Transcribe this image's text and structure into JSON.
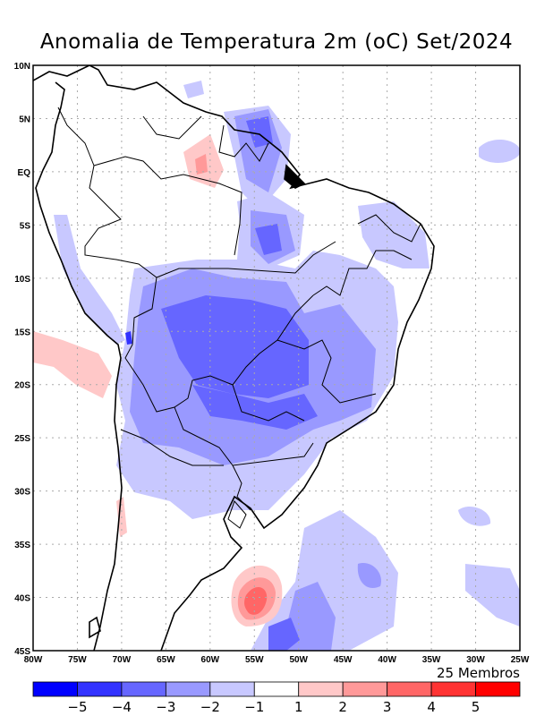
{
  "title": "Anomalia de Temperatura 2m (oC) Set/2024",
  "members_label": "25 Membros",
  "lat_labels": [
    "10N",
    "5N",
    "EQ",
    "5S",
    "10S",
    "15S",
    "20S",
    "25S",
    "30S",
    "35S",
    "40S",
    "45S"
  ],
  "lon_labels": [
    "80W",
    "75W",
    "70W",
    "65W",
    "60W",
    "55W",
    "50W",
    "45W",
    "40W",
    "35W",
    "30W",
    "25W"
  ],
  "colorbar": {
    "colors": [
      "#0000ff",
      "#3333ff",
      "#6666ff",
      "#9999ff",
      "#c8c8ff",
      "#ffffff",
      "#ffc8c8",
      "#ff9999",
      "#ff6666",
      "#ff3333",
      "#ff0000"
    ],
    "labels": [
      "−5",
      "−4",
      "−3",
      "−2",
      "−1",
      "1",
      "2",
      "3",
      "4",
      "5"
    ]
  }
}
